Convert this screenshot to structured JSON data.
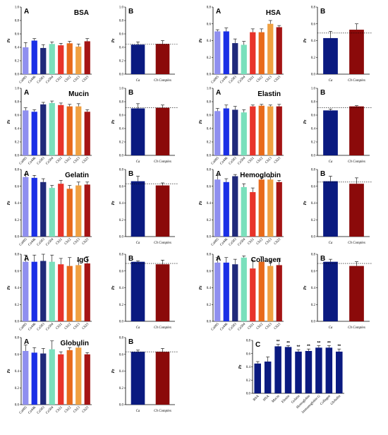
{
  "colors": {
    "c_variants": [
      "#8f8fef",
      "#1a2fe6",
      "#202a7a",
      "#7ae0bc"
    ],
    "ch_variants": [
      "#e8332a",
      "#e86a1a",
      "#f0a040",
      "#a51414"
    ],
    "ca_bar": "#0a1a80",
    "complex_bar": "#8b0a0a",
    "panel_c_bar": "#0a1a80"
  },
  "chart_data": [
    {
      "type": "bar",
      "panel": "A",
      "title": "BSA",
      "ylabel": "Pz",
      "ylim": [
        0,
        1.0
      ],
      "yticks": [
        "0.0",
        "0.2",
        "0.4",
        "0.6",
        "0.8",
        "1.0"
      ],
      "categories": [
        "Ca005",
        "Ca446",
        "Ca503",
        "Ca504",
        "Ch11",
        "Ch12",
        "Ch13",
        "Ch23"
      ],
      "values": [
        0.4,
        0.5,
        0.39,
        0.45,
        0.43,
        0.46,
        0.41,
        0.49
      ],
      "errors": [
        0.07,
        0.03,
        0.05,
        0.03,
        0.03,
        0.03,
        0.04,
        0.04
      ]
    },
    {
      "type": "bar",
      "panel": "B",
      "title": "",
      "ylabel": "Pz",
      "ylim": [
        0,
        1.0
      ],
      "yticks": [
        "0.0",
        "0.2",
        "0.4",
        "0.6",
        "0.8",
        "1.0"
      ],
      "categories": [
        "Ca",
        "Ch Complex"
      ],
      "values": [
        0.44,
        0.45
      ],
      "errors": [
        0.04,
        0.05
      ],
      "ref": 0.45
    },
    {
      "type": "bar",
      "panel": "A",
      "title": "HSA",
      "ylabel": "Pz",
      "ylim": [
        0,
        0.8
      ],
      "yticks": [
        "0.0",
        "0.2",
        "0.4",
        "0.6",
        "0.8"
      ],
      "categories": [
        "Ca005",
        "Ca446",
        "Ca503",
        "Ca504",
        "Ch11",
        "Ch12",
        "Ch13",
        "Ch23"
      ],
      "values": [
        0.51,
        0.51,
        0.37,
        0.35,
        0.5,
        0.5,
        0.6,
        0.56
      ],
      "errors": [
        0.02,
        0.04,
        0.05,
        0.04,
        0.04,
        0.04,
        0.04,
        0.02
      ]
    },
    {
      "type": "bar",
      "panel": "B",
      "title": "",
      "ylabel": "Pz",
      "ylim": [
        0,
        0.8
      ],
      "yticks": [
        "0.0",
        "0.2",
        "0.4",
        "0.6",
        "0.8"
      ],
      "categories": [
        "Ca",
        "Ch Complex"
      ],
      "values": [
        0.43,
        0.53
      ],
      "errors": [
        0.08,
        0.07
      ],
      "ref": 0.49
    },
    {
      "type": "bar",
      "panel": "A",
      "title": "Mucin",
      "ylabel": "Pz",
      "ylim": [
        0,
        1.0
      ],
      "yticks": [
        "0.0",
        "0.2",
        "0.4",
        "0.6",
        "0.8",
        "1.0"
      ],
      "categories": [
        "Ca005",
        "Ca446",
        "Ca503",
        "Ca504",
        "Ch11",
        "Ch12",
        "Ch13",
        "Ch23"
      ],
      "values": [
        0.67,
        0.65,
        0.76,
        0.78,
        0.75,
        0.73,
        0.73,
        0.65
      ],
      "errors": [
        0.04,
        0.03,
        0.03,
        0.03,
        0.03,
        0.03,
        0.04,
        0.03
      ]
    },
    {
      "type": "bar",
      "panel": "B",
      "title": "",
      "ylabel": "Pz",
      "ylim": [
        0,
        1.0
      ],
      "yticks": [
        "0.0",
        "0.2",
        "0.4",
        "0.6",
        "0.8",
        "1.0"
      ],
      "categories": [
        "Ca",
        "Ch Complex"
      ],
      "values": [
        0.7,
        0.71
      ],
      "errors": [
        0.07,
        0.04
      ],
      "ref": 0.71
    },
    {
      "type": "bar",
      "panel": "A",
      "title": "Elastin",
      "ylabel": "Pz",
      "ylim": [
        0,
        1.0
      ],
      "yticks": [
        "0.0",
        "0.2",
        "0.4",
        "0.6",
        "0.8",
        "1.0"
      ],
      "categories": [
        "Ca005",
        "Ca446",
        "Ca503",
        "Ca504",
        "Ch11",
        "Ch12",
        "Ch13",
        "Ch23"
      ],
      "values": [
        0.66,
        0.7,
        0.68,
        0.64,
        0.73,
        0.74,
        0.73,
        0.73
      ],
      "errors": [
        0.04,
        0.05,
        0.05,
        0.04,
        0.02,
        0.02,
        0.02,
        0.03
      ]
    },
    {
      "type": "bar",
      "panel": "B",
      "title": "",
      "ylabel": "Pz",
      "ylim": [
        0,
        1.0
      ],
      "yticks": [
        "0.0",
        "0.2",
        "0.4",
        "0.6",
        "0.8",
        "1.0"
      ],
      "categories": [
        "Ca",
        "Ch Complex"
      ],
      "values": [
        0.67,
        0.73
      ],
      "errors": [
        0.02,
        0.01
      ],
      "ref": 0.71
    },
    {
      "type": "bar",
      "panel": "A",
      "title": "Gelatin",
      "ylabel": "Pz",
      "ylim": [
        0,
        0.8
      ],
      "yticks": [
        "0.0",
        "0.2",
        "0.4",
        "0.6",
        "0.8"
      ],
      "categories": [
        "Ca005",
        "Ca446",
        "Ca503",
        "Ca504",
        "Ch11",
        "Ch12",
        "Ch13",
        "Ch23"
      ],
      "values": [
        0.71,
        0.7,
        0.65,
        0.58,
        0.63,
        0.57,
        0.61,
        0.62
      ],
      "errors": [
        0.03,
        0.03,
        0.04,
        0.03,
        0.04,
        0.04,
        0.04,
        0.03
      ]
    },
    {
      "type": "bar",
      "panel": "B",
      "title": "",
      "ylabel": "Pz",
      "ylim": [
        0,
        0.8
      ],
      "yticks": [
        "0.0",
        "0.2",
        "0.4",
        "0.6",
        "0.8"
      ],
      "categories": [
        "Ca",
        "Ch Complex"
      ],
      "values": [
        0.66,
        0.61
      ],
      "errors": [
        0.06,
        0.03
      ],
      "ref": 0.63
    },
    {
      "type": "bar",
      "panel": "A",
      "title": "Hemoglobin",
      "ylabel": "Pz",
      "ylim": [
        0,
        0.8
      ],
      "yticks": [
        "0.0",
        "0.2",
        "0.4",
        "0.6",
        "0.8"
      ],
      "categories": [
        "Ca005",
        "Ca446",
        "Ca503",
        "Ca504",
        "Ch11",
        "Ch12",
        "Ch13",
        "Ch23"
      ],
      "values": [
        0.68,
        0.65,
        0.72,
        0.59,
        0.53,
        0.68,
        0.68,
        0.65
      ],
      "errors": [
        0.05,
        0.04,
        0.02,
        0.04,
        0.05,
        0.03,
        0.03,
        0.02
      ]
    },
    {
      "type": "bar",
      "panel": "B",
      "title": "",
      "ylabel": "Pz",
      "ylim": [
        0,
        0.8
      ],
      "yticks": [
        "0.0",
        "0.2",
        "0.4",
        "0.6",
        "0.8"
      ],
      "categories": [
        "Ca",
        "Ch Complex"
      ],
      "values": [
        0.66,
        0.63
      ],
      "errors": [
        0.06,
        0.07
      ],
      "ref": 0.65
    },
    {
      "type": "bar",
      "panel": "A",
      "title": "IgG",
      "ylabel": "Pz",
      "ylim": [
        0,
        0.8
      ],
      "yticks": [
        "0.0",
        "0.2",
        "0.4",
        "0.6",
        "0.8"
      ],
      "categories": [
        "Ca005",
        "Ca446",
        "Ca503",
        "Ca504",
        "Ch11",
        "Ch12",
        "Ch13",
        "Ch23"
      ],
      "values": [
        0.71,
        0.71,
        0.72,
        0.71,
        0.68,
        0.66,
        0.67,
        0.69
      ],
      "errors": [
        0.08,
        0.08,
        0.08,
        0.08,
        0.07,
        0.1,
        0.05,
        0.08
      ]
    },
    {
      "type": "bar",
      "panel": "B",
      "title": "",
      "ylabel": "Pz",
      "ylim": [
        0,
        0.8
      ],
      "yticks": [
        "0.0",
        "0.2",
        "0.4",
        "0.6",
        "0.8"
      ],
      "categories": [
        "Ca",
        "Ch Complex"
      ],
      "values": [
        0.71,
        0.68
      ],
      "errors": [
        0.01,
        0.05
      ],
      "ref": 0.69
    },
    {
      "type": "bar",
      "panel": "A",
      "title": "Collagen",
      "ylabel": "Pz",
      "ylim": [
        0,
        0.8
      ],
      "yticks": [
        "0.0",
        "0.2",
        "0.4",
        "0.6",
        "0.8"
      ],
      "categories": [
        "Ca005",
        "Ca446",
        "Ca503",
        "Ca504",
        "Ch11",
        "Ch12",
        "Ch13",
        "Ch23"
      ],
      "values": [
        0.7,
        0.7,
        0.68,
        0.76,
        0.63,
        0.71,
        0.66,
        0.67
      ],
      "errors": [
        0.06,
        0.06,
        0.06,
        0.02,
        0.1,
        0.06,
        0.06,
        0.08
      ]
    },
    {
      "type": "bar",
      "panel": "B",
      "title": "",
      "ylabel": "Pz",
      "ylim": [
        0,
        0.8
      ],
      "yticks": [
        "0.0",
        "0.2",
        "0.4",
        "0.6",
        "0.8"
      ],
      "categories": [
        "Ca",
        "Ch Complex"
      ],
      "values": [
        0.71,
        0.66
      ],
      "errors": [
        0.03,
        0.05
      ],
      "ref": 0.69
    },
    {
      "type": "bar",
      "panel": "A",
      "title": "Globulin",
      "ylabel": "Pz",
      "ylim": [
        0,
        0.8
      ],
      "yticks": [
        "0.0",
        "0.2",
        "0.4",
        "0.6",
        "0.8"
      ],
      "categories": [
        "Ca005",
        "Ca446",
        "Ca503",
        "Ca504",
        "Ch11",
        "Ch12",
        "Ch13",
        "Ch23"
      ],
      "values": [
        0.64,
        0.62,
        0.61,
        0.66,
        0.6,
        0.65,
        0.68,
        0.6
      ],
      "errors": [
        0.07,
        0.06,
        0.06,
        0.1,
        0.03,
        0.03,
        0.02,
        0.02
      ]
    },
    {
      "type": "bar",
      "panel": "B",
      "title": "",
      "ylabel": "Pz",
      "ylim": [
        0,
        0.8
      ],
      "yticks": [
        "0.0",
        "0.2",
        "0.4",
        "0.6",
        "0.8"
      ],
      "categories": [
        "Ca",
        "Ch Complex"
      ],
      "values": [
        0.63,
        0.63
      ],
      "errors": [
        0.02,
        0.04
      ],
      "ref": 0.63
    },
    {
      "type": "bar",
      "panel": "C",
      "title": "",
      "ylabel": "Pz",
      "ylim": [
        0,
        0.8
      ],
      "yticks": [
        "0.0",
        "0.2",
        "0.4",
        "0.6",
        "0.8"
      ],
      "categories": [
        "BSA",
        "HSA",
        "Mucin",
        "Elastin",
        "Gelatin",
        "Hemoglobin",
        "Immunoglobin G",
        "Collagen",
        "Globulin"
      ],
      "values": [
        0.45,
        0.48,
        0.71,
        0.7,
        0.63,
        0.64,
        0.69,
        0.69,
        0.63
      ],
      "errors": [
        0.03,
        0.07,
        0.03,
        0.02,
        0.03,
        0.03,
        0.03,
        0.03,
        0.04
      ],
      "annotations": [
        "",
        "",
        "**",
        "**",
        "**",
        "**",
        "**",
        "**",
        "**"
      ]
    }
  ]
}
